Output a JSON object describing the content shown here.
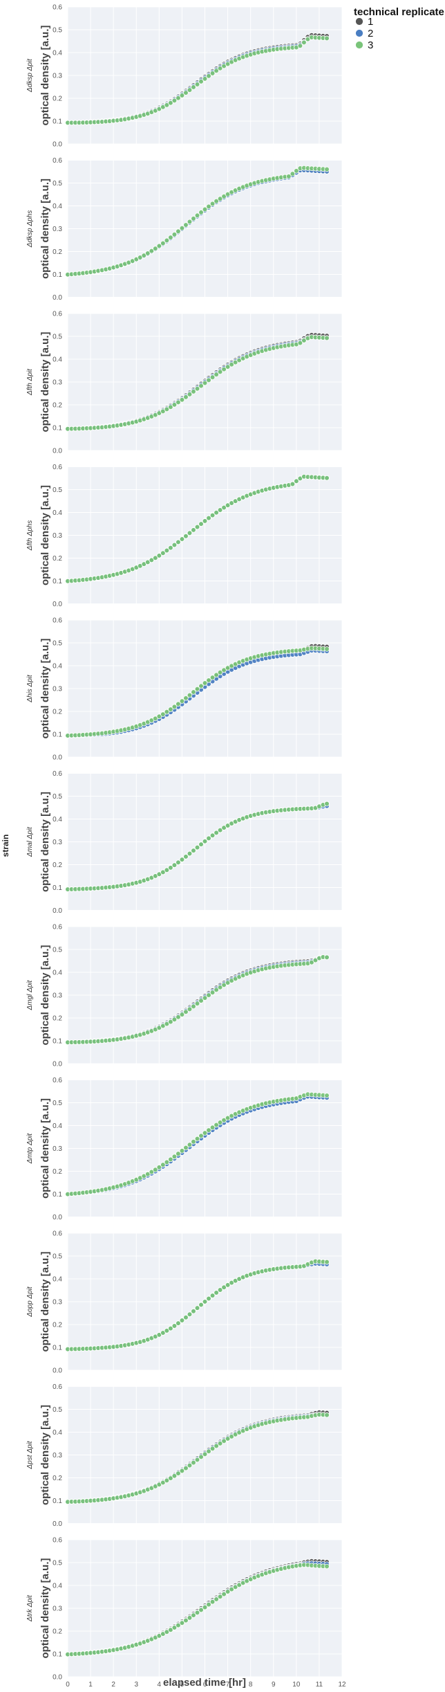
{
  "chart_data": {
    "type": "scatter",
    "facet_title": "strain",
    "xlabel": "elapsed time [hr]",
    "ylabel": "optical density [a.u.]",
    "xlim": [
      0,
      12
    ],
    "ylim": [
      0,
      0.6
    ],
    "xticks": [
      "0",
      "1",
      "2",
      "3",
      "4",
      "5",
      "6",
      "7",
      "8",
      "9",
      "10",
      "11",
      "12"
    ],
    "yticks": [
      "0.0",
      "0.1",
      "0.2",
      "0.3",
      "0.4",
      "0.5",
      "0.6"
    ],
    "legend": {
      "title": "technical replicate",
      "placement": "top-right",
      "entries": [
        {
          "label": "1",
          "color": "#555555"
        },
        {
          "label": "2",
          "color": "#4a7ec2"
        },
        {
          "label": "3",
          "color": "#7ac47a"
        }
      ]
    },
    "grid": true,
    "x_sampling": {
      "start": 0,
      "step": 0.1667,
      "end": 11.5
    },
    "background": "#eef1f6",
    "panels": [
      {
        "strain": "Δdksp Δpit",
        "growth": {
          "y0": 0.09,
          "ymax": 0.44,
          "x_mid": 5.6,
          "width": 1.15
        },
        "bump": {
          "x_on": 10.1,
          "level": [
            0.48,
            0.47,
            0.47
          ]
        },
        "offsets": [
          0.0,
          -0.005,
          -0.01
        ]
      },
      {
        "strain": "Δdksp Δphs",
        "growth": {
          "y0": 0.09,
          "ymax": 0.54,
          "x_mid": 5.2,
          "width": 1.35
        },
        "bump": {
          "x_on": 9.7,
          "level": [
            0.56,
            0.56,
            0.57
          ]
        },
        "offsets": [
          0.0,
          0.0,
          0.005
        ]
      },
      {
        "strain": "Δfth Δpit",
        "growth": {
          "y0": 0.09,
          "ymax": 0.49,
          "x_mid": 5.8,
          "width": 1.3
        },
        "bump": {
          "x_on": 10.1,
          "level": [
            0.51,
            0.5,
            0.5
          ]
        },
        "offsets": [
          0.0,
          -0.005,
          -0.01
        ]
      },
      {
        "strain": "Δfth Δphs",
        "growth": {
          "y0": 0.09,
          "ymax": 0.54,
          "x_mid": 5.4,
          "width": 1.4
        },
        "bump": {
          "x_on": 9.8,
          "level": [
            0.56,
            0.56,
            0.56
          ]
        },
        "offsets": [
          0.0,
          0.0,
          0.0
        ]
      },
      {
        "strain": "Δhis Δpit",
        "growth": {
          "y0": 0.09,
          "ymax": 0.47,
          "x_mid": 5.5,
          "width": 1.2
        },
        "bump": {
          "x_on": 10.2,
          "level": [
            0.49,
            0.47,
            0.48
          ]
        },
        "offsets": [
          0.0,
          -0.012,
          0.005
        ]
      },
      {
        "strain": "Δmal Δpit",
        "growth": {
          "y0": 0.09,
          "ymax": 0.45,
          "x_mid": 5.6,
          "width": 1.1
        },
        "bump": {
          "x_on": 10.8,
          "level": [
            0.47,
            0.46,
            0.47
          ]
        },
        "offsets": [
          0.0,
          0.0,
          0.0
        ]
      },
      {
        "strain": "Δmgl Δpit",
        "growth": {
          "y0": 0.09,
          "ymax": 0.45,
          "x_mid": 5.7,
          "width": 1.2
        },
        "bump": {
          "x_on": 10.6,
          "level": [
            0.47,
            0.47,
            0.47
          ]
        },
        "offsets": [
          0.005,
          0.0,
          -0.005
        ]
      },
      {
        "strain": "Δmtp Δpit",
        "growth": {
          "y0": 0.09,
          "ymax": 0.53,
          "x_mid": 5.3,
          "width": 1.4
        },
        "bump": {
          "x_on": 10.0,
          "level": [
            0.53,
            0.53,
            0.54
          ]
        },
        "offsets": [
          0.0,
          -0.008,
          0.004
        ]
      },
      {
        "strain": "Δopp Δpit",
        "growth": {
          "y0": 0.09,
          "ymax": 0.46,
          "x_mid": 5.7,
          "width": 1.1
        },
        "bump": {
          "x_on": 10.3,
          "level": [
            0.48,
            0.47,
            0.48
          ]
        },
        "offsets": [
          0.0,
          0.0,
          0.0
        ]
      },
      {
        "strain": "Δpst Δpit",
        "growth": {
          "y0": 0.09,
          "ymax": 0.48,
          "x_mid": 5.7,
          "width": 1.3
        },
        "bump": {
          "x_on": 10.5,
          "level": [
            0.49,
            0.48,
            0.48
          ]
        },
        "offsets": [
          0.004,
          0.0,
          -0.004
        ]
      },
      {
        "strain": "Δtrk Δpit",
        "growth": {
          "y0": 0.09,
          "ymax": 0.52,
          "x_mid": 5.9,
          "width": 1.5
        },
        "bump": {
          "x_on": 10.2,
          "level": [
            0.51,
            0.5,
            0.49
          ]
        },
        "offsets": [
          0.0,
          -0.005,
          -0.008
        ]
      }
    ]
  }
}
